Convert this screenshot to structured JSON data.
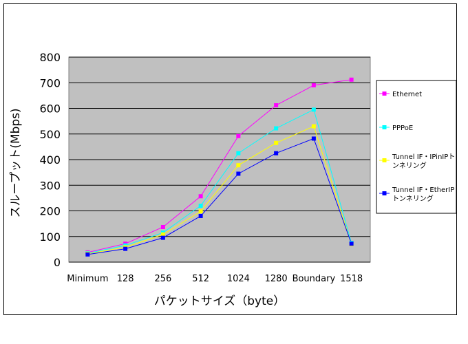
{
  "chart_data": {
    "type": "line",
    "title": "",
    "xlabel": "パケットサイズ（byte）",
    "ylabel": "スループット(Mbps)",
    "categories": [
      "Minimum",
      "128",
      "256",
      "512",
      "1024",
      "1280",
      "Boundary",
      "1518"
    ],
    "ylim": [
      0,
      800
    ],
    "yticks": [
      "0",
      "100",
      "200",
      "300",
      "400",
      "500",
      "600",
      "700",
      "800"
    ],
    "grid": true,
    "plot_background": "#c0c0c0",
    "legend_position": "right",
    "series": [
      {
        "name": "Ethernet",
        "color": "#ff00ff",
        "values": [
          38,
          72,
          137,
          257,
          492,
          612,
          690,
          712
        ]
      },
      {
        "name": "PPPoE",
        "color": "#00ffff",
        "values": [
          35,
          65,
          115,
          220,
          425,
          522,
          595,
          75
        ]
      },
      {
        "name": "Tunnel IF・IPinIPトンネリング",
        "legend_lines": [
          "Tunnel IF・IPinIPト",
          "ンネリング"
        ],
        "color": "#ffff00",
        "values": [
          33,
          58,
          108,
          198,
          378,
          465,
          530,
          70
        ]
      },
      {
        "name": "Tunnel IF・EtherIPトンネリング",
        "legend_lines": [
          "Tunnel IF・EtherIP",
          "トンネリング"
        ],
        "color": "#0000ff",
        "values": [
          30,
          52,
          95,
          180,
          345,
          425,
          482,
          72
        ]
      }
    ]
  }
}
